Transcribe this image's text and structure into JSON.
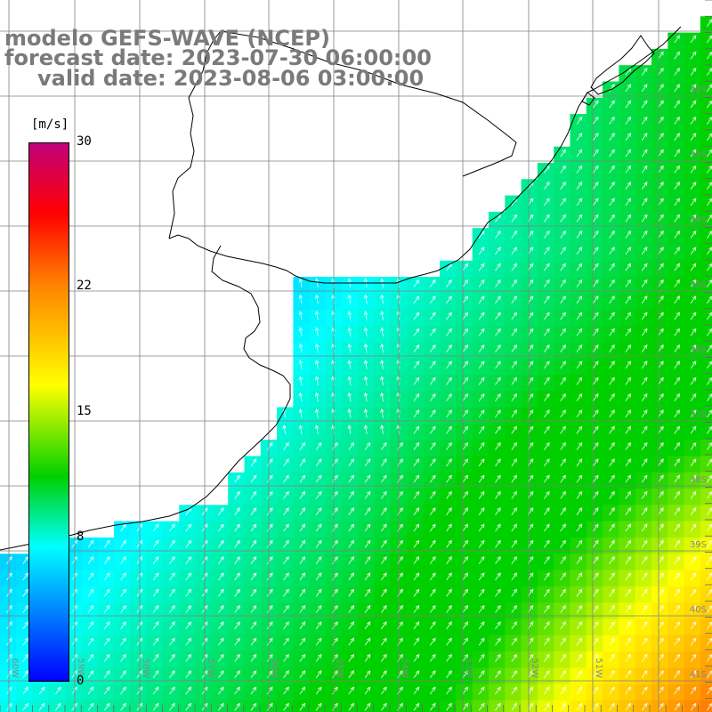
{
  "header": {
    "model_line": "modelo GEFS-WAVE (NCEP)",
    "forecast_line": "forecast date: 2023-07-30 06:00:00",
    "valid_line": "valid date: 2023-08-06 03:00:00"
  },
  "colorbar": {
    "unit": "[m/s]",
    "ticks": [
      "30",
      "22",
      "15",
      "8",
      "0"
    ],
    "tick_values": [
      30,
      22,
      15,
      8,
      0
    ],
    "min": 0,
    "max": 30,
    "colors": {
      "blue": "#0000ff",
      "cyan": "#00ffff",
      "green": "#00d000",
      "yellow": "#ffff00",
      "orange": "#ff8000",
      "red": "#ff0000",
      "magenta": "#c0007a"
    }
  },
  "map": {
    "lon_labels": [
      "60W",
      "59W",
      "58W",
      "57W",
      "56W",
      "55W",
      "54W",
      "53W",
      "52W",
      "51W"
    ],
    "lat_labels": [
      "32S",
      "33S",
      "34S",
      "35S",
      "36S",
      "37S",
      "38S",
      "39S",
      "40S",
      "41S"
    ],
    "land_color": "#ffffff",
    "grid_color": "#808080",
    "coast_color": "#000000"
  }
}
